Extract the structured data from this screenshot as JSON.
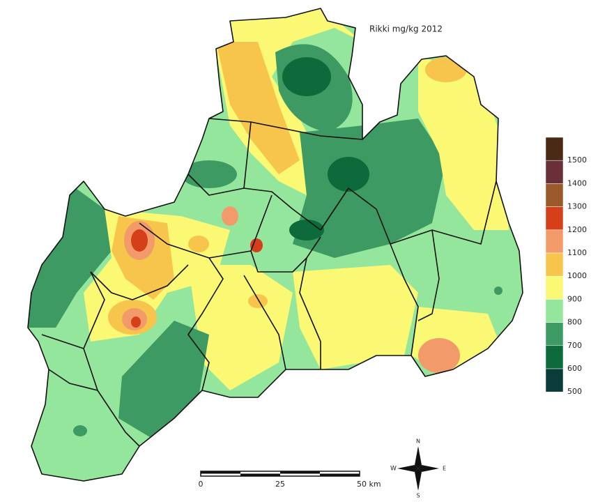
{
  "title": "Rikki mg/kg 2012",
  "legend": {
    "items": [
      {
        "label": 1500,
        "color": "#4a2a14"
      },
      {
        "label": 1400,
        "color": "#6b2f3a"
      },
      {
        "label": 1300,
        "color": "#9a5a2c"
      },
      {
        "label": 1200,
        "color": "#d5401b"
      },
      {
        "label": 1100,
        "color": "#f39a6a"
      },
      {
        "label": 1000,
        "color": "#f7c44c"
      },
      {
        "label": 900,
        "color": "#fbf874"
      },
      {
        "label": 800,
        "color": "#93e69b"
      },
      {
        "label": 700,
        "color": "#3d9a62"
      },
      {
        "label": 600,
        "color": "#0d6b3b"
      },
      {
        "label": 500,
        "color": "#0a3c3a"
      }
    ]
  },
  "scale_bar": {
    "labels": [
      "0",
      "25",
      "50 km"
    ]
  },
  "compass": {
    "north": "N",
    "east": "E",
    "south": "S",
    "west": "W"
  }
}
